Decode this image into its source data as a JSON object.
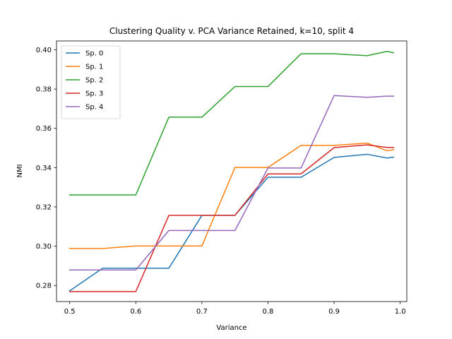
{
  "chart_data": {
    "type": "line",
    "title": "Clustering Quality v. PCA Variance Retained, k=10, split 4",
    "xlabel": "Variance",
    "ylabel": "NMI",
    "xlim": [
      0.48,
      1.01
    ],
    "ylim": [
      0.2718,
      0.4045
    ],
    "xticks": [
      0.5,
      0.6,
      0.7,
      0.8,
      0.9,
      1.0
    ],
    "xtick_labels": [
      "0.5",
      "0.6",
      "0.7",
      "0.8",
      "0.9",
      "1.0"
    ],
    "yticks": [
      0.28,
      0.3,
      0.32,
      0.34,
      0.36,
      0.38,
      0.4
    ],
    "ytick_labels": [
      "0.28",
      "0.30",
      "0.32",
      "0.34",
      "0.36",
      "0.38",
      "0.40"
    ],
    "grid": false,
    "legend_position": "top-left",
    "x": [
      0.5,
      0.55,
      0.6,
      0.65,
      0.7,
      0.75,
      0.8,
      0.85,
      0.9,
      0.95,
      0.98,
      0.99
    ],
    "series": [
      {
        "name": "Sp. 0",
        "color": "#1f77b4",
        "values": [
          0.2773,
          0.2888,
          0.2888,
          0.2888,
          0.3157,
          0.3157,
          0.3351,
          0.3351,
          0.3452,
          0.3468,
          0.3449,
          0.3453
        ]
      },
      {
        "name": "Sp. 1",
        "color": "#ff7f0e",
        "values": [
          0.2988,
          0.2988,
          0.3001,
          0.3001,
          0.3001,
          0.3401,
          0.3401,
          0.3513,
          0.3513,
          0.3525,
          0.3486,
          0.3491
        ]
      },
      {
        "name": "Sp. 2",
        "color": "#2ca02c",
        "values": [
          0.3261,
          0.3261,
          0.3261,
          0.3657,
          0.3657,
          0.3813,
          0.3813,
          0.398,
          0.398,
          0.397,
          0.3992,
          0.3985
        ]
      },
      {
        "name": "Sp. 3",
        "color": "#d62728",
        "values": [
          0.2769,
          0.2769,
          0.2769,
          0.3157,
          0.3157,
          0.3157,
          0.3368,
          0.3368,
          0.3502,
          0.3516,
          0.3503,
          0.3503
        ]
      },
      {
        "name": "Sp. 4",
        "color": "#9467bd",
        "values": [
          0.2879,
          0.2879,
          0.2879,
          0.308,
          0.308,
          0.308,
          0.3398,
          0.3398,
          0.3767,
          0.3758,
          0.3764,
          0.3764
        ]
      }
    ]
  }
}
